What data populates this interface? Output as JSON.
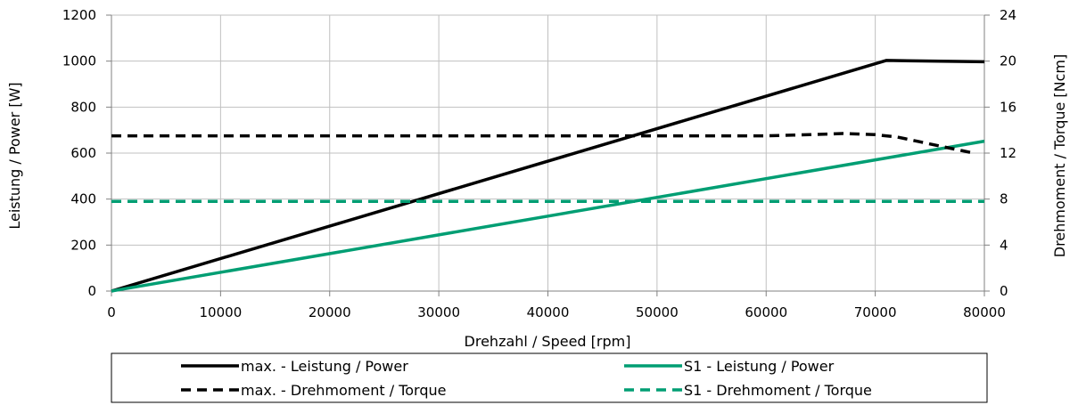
{
  "chart_data": {
    "type": "line",
    "xlabel": "Drehzahl / Speed [rpm]",
    "ylabel_left": "Leistung / Power [W]",
    "ylabel_right": "Drehmoment / Torque [Ncm]",
    "xlim": [
      0,
      80000
    ],
    "ylim_left": [
      0,
      1200
    ],
    "ylim_right": [
      0,
      24
    ],
    "x_ticks": [
      "0",
      "10000",
      "20000",
      "30000",
      "40000",
      "50000",
      "60000",
      "70000",
      "80000"
    ],
    "y_left_ticks": [
      "0",
      "200",
      "400",
      "600",
      "800",
      "1000",
      "1200"
    ],
    "y_right_ticks": [
      "0",
      "4",
      "8",
      "12",
      "16",
      "20",
      "24"
    ],
    "grid": true,
    "legend_position": "bottom",
    "series": [
      {
        "name": "max. - Leistung / Power",
        "axis": "left",
        "style": "solid",
        "color": "#000000",
        "x": [
          0,
          71000,
          80000
        ],
        "y": [
          0,
          1003,
          997
        ]
      },
      {
        "name": "S1 - Leistung / Power",
        "axis": "left",
        "style": "solid",
        "color": "#009e73",
        "x": [
          0,
          80000
        ],
        "y": [
          0,
          652
        ]
      },
      {
        "name": "max. - Drehmoment / Torque",
        "axis": "right",
        "style": "dashed",
        "color": "#000000",
        "x": [
          0,
          60000,
          64000,
          67000,
          70000,
          72000,
          74000,
          76000,
          78000,
          79000
        ],
        "y": [
          13.5,
          13.5,
          13.6,
          13.7,
          13.6,
          13.4,
          13.0,
          12.6,
          12.2,
          12.0
        ]
      },
      {
        "name": "S1 - Drehmoment / Torque",
        "axis": "right",
        "style": "dashed",
        "color": "#009e73",
        "x": [
          0,
          80000
        ],
        "y": [
          7.8,
          7.8
        ]
      }
    ]
  }
}
